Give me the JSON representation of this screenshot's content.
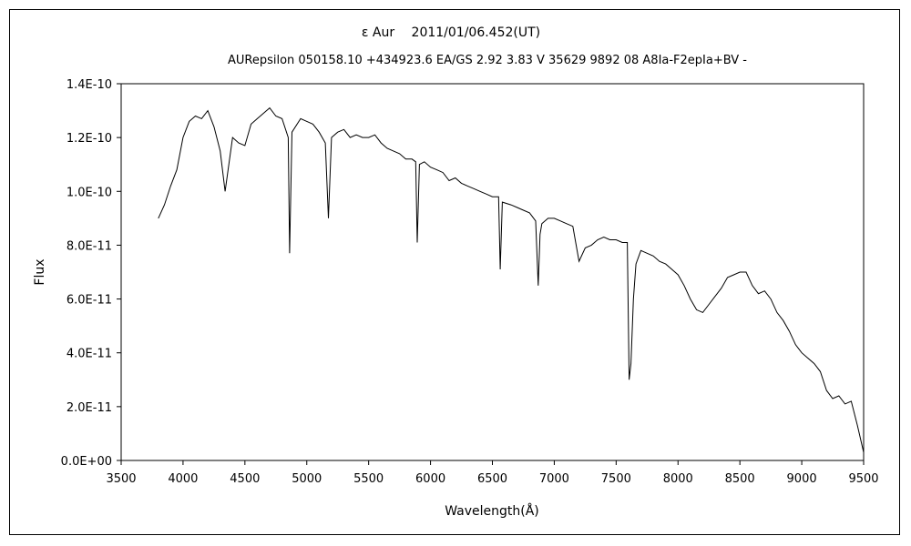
{
  "chart_data": {
    "type": "line",
    "title": "ε Aur　 2011/01/06.452(UT)",
    "subtitle": "AURepsilon 050158.10 +434923.6 EA/GS 2.92 3.83 V 35629 9892 08 A8Ia-F2epIa+BV -",
    "xlabel": "Wavelength(Å)",
    "ylabel": "Flux",
    "xlim": [
      3500,
      9500
    ],
    "ylim": [
      0,
      1.4e-10
    ],
    "xticks": [
      "3500",
      "4000",
      "4500",
      "5000",
      "5500",
      "6000",
      "6500",
      "7000",
      "7500",
      "8000",
      "8500",
      "9000",
      "9500"
    ],
    "yticks": [
      "0.0E+00",
      "2.0E-11",
      "4.0E-11",
      "6.0E-11",
      "8.0E-11",
      "1.0E-10",
      "1.2E-10",
      "1.4E-10"
    ],
    "grid": false,
    "legend": "none",
    "line_color": "#000000",
    "series": [
      {
        "x": [
          3800,
          3850,
          3900,
          3950,
          4000,
          4050,
          4100,
          4150,
          4200,
          4250,
          4300,
          4340,
          4400,
          4450,
          4500,
          4550,
          4600,
          4650,
          4700,
          4750,
          4800,
          4850,
          4861,
          4880,
          4950,
          5000,
          5050,
          5100,
          5150,
          5175,
          5200,
          5250,
          5300,
          5350,
          5400,
          5450,
          5500,
          5550,
          5600,
          5650,
          5700,
          5750,
          5800,
          5850,
          5880,
          5893,
          5910,
          5950,
          6000,
          6050,
          6100,
          6150,
          6200,
          6250,
          6300,
          6350,
          6400,
          6450,
          6500,
          6550,
          6563,
          6580,
          6650,
          6700,
          6750,
          6800,
          6850,
          6870,
          6885,
          6900,
          6950,
          7000,
          7050,
          7100,
          7150,
          7200,
          7250,
          7300,
          7350,
          7400,
          7450,
          7500,
          7550,
          7590,
          7605,
          7620,
          7640,
          7660,
          7700,
          7750,
          7800,
          7850,
          7900,
          7950,
          8000,
          8050,
          8100,
          8150,
          8200,
          8250,
          8300,
          8350,
          8400,
          8450,
          8500,
          8550,
          8600,
          8650,
          8700,
          8750,
          8800,
          8850,
          8900,
          8950,
          9000,
          9050,
          9100,
          9150,
          9200,
          9250,
          9300,
          9350,
          9400,
          9450,
          9500
        ],
        "y": [
          9e-11,
          9.5e-11,
          1.02e-10,
          1.08e-10,
          1.2e-10,
          1.26e-10,
          1.28e-10,
          1.27e-10,
          1.3e-10,
          1.24e-10,
          1.15e-10,
          1e-10,
          1.2e-10,
          1.18e-10,
          1.17e-10,
          1.25e-10,
          1.27e-10,
          1.29e-10,
          1.31e-10,
          1.28e-10,
          1.27e-10,
          1.2e-10,
          7.7e-11,
          1.22e-10,
          1.27e-10,
          1.26e-10,
          1.25e-10,
          1.22e-10,
          1.18e-10,
          9e-11,
          1.2e-10,
          1.22e-10,
          1.23e-10,
          1.2e-10,
          1.21e-10,
          1.2e-10,
          1.2e-10,
          1.21e-10,
          1.18e-10,
          1.16e-10,
          1.15e-10,
          1.14e-10,
          1.12e-10,
          1.12e-10,
          1.11e-10,
          8.1e-11,
          1.1e-10,
          1.11e-10,
          1.09e-10,
          1.08e-10,
          1.07e-10,
          1.04e-10,
          1.05e-10,
          1.03e-10,
          1.02e-10,
          1.01e-10,
          1e-10,
          9.9e-11,
          9.8e-11,
          9.8e-11,
          7.1e-11,
          9.6e-11,
          9.5e-11,
          9.4e-11,
          9.3e-11,
          9.2e-11,
          8.9e-11,
          6.5e-11,
          8.4e-11,
          8.8e-11,
          9e-11,
          9e-11,
          8.9e-11,
          8.8e-11,
          8.7e-11,
          7.4e-11,
          7.9e-11,
          8e-11,
          8.2e-11,
          8.3e-11,
          8.2e-11,
          8.2e-11,
          8.1e-11,
          8.1e-11,
          3e-11,
          3.6e-11,
          6e-11,
          7.3e-11,
          7.8e-11,
          7.7e-11,
          7.6e-11,
          7.4e-11,
          7.3e-11,
          7.1e-11,
          6.9e-11,
          6.5e-11,
          6e-11,
          5.6e-11,
          5.5e-11,
          5.8e-11,
          6.1e-11,
          6.4e-11,
          6.8e-11,
          6.9e-11,
          7e-11,
          7e-11,
          6.5e-11,
          6.2e-11,
          6.3e-11,
          6e-11,
          5.5e-11,
          5.2e-11,
          4.8e-11,
          4.3e-11,
          4e-11,
          3.8e-11,
          3.6e-11,
          3.3e-11,
          2.6e-11,
          2.3e-11,
          2.4e-11,
          2.1e-11,
          2.2e-11,
          1.3e-11,
          3e-12
        ]
      }
    ]
  }
}
